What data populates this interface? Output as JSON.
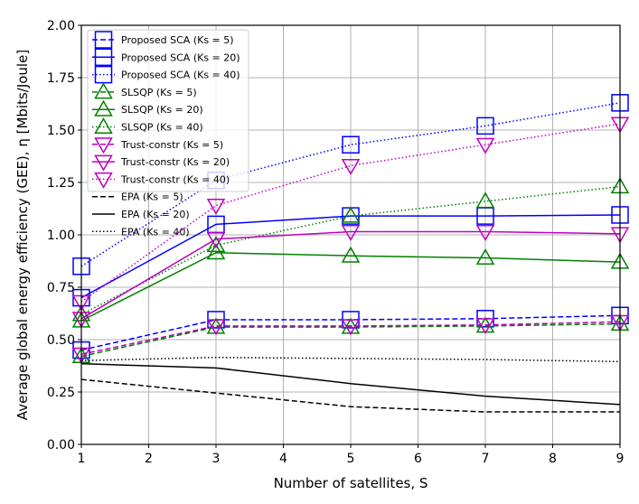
{
  "chart_data": {
    "type": "line",
    "title": "",
    "xlabel": "Number of satellites, S",
    "ylabel": "Average global energy efficiency (GEE), η [Mbits/Joule]",
    "xlim": [
      1,
      9
    ],
    "ylim": [
      0,
      2
    ],
    "xticks": [
      "1",
      "2",
      "3",
      "4",
      "5",
      "6",
      "7",
      "8",
      "9"
    ],
    "yticks": [
      "0.00",
      "0.25",
      "0.50",
      "0.75",
      "1.00",
      "1.25",
      "1.50",
      "1.75",
      "2.00"
    ],
    "grid": true,
    "legend_position": "top-left",
    "x": [
      1,
      3,
      5,
      7,
      9
    ],
    "series": [
      {
        "name": "Proposed SCA (Ks = 5)",
        "color": "#0000ff",
        "dash": "dashed",
        "marker": "square",
        "values": [
          0.45,
          0.595,
          0.595,
          0.6,
          0.615
        ]
      },
      {
        "name": "Proposed SCA (Ks = 20)",
        "color": "#0000ff",
        "dash": "solid",
        "marker": "square",
        "values": [
          0.7,
          1.05,
          1.09,
          1.09,
          1.095
        ]
      },
      {
        "name": "Proposed SCA (Ks = 40)",
        "color": "#0000ff",
        "dash": "dotted",
        "marker": "square",
        "values": [
          0.85,
          1.26,
          1.43,
          1.52,
          1.63
        ]
      },
      {
        "name": "SLSQP (Ks = 5)",
        "color": "#008000",
        "dash": "dashed",
        "marker": "triangle-up",
        "values": [
          0.42,
          0.56,
          0.56,
          0.565,
          0.575
        ]
      },
      {
        "name": "SLSQP (Ks = 20)",
        "color": "#008000",
        "dash": "solid",
        "marker": "triangle-up",
        "values": [
          0.59,
          0.915,
          0.9,
          0.89,
          0.87
        ]
      },
      {
        "name": "SLSQP (Ks = 40)",
        "color": "#008000",
        "dash": "dotted",
        "marker": "triangle-up",
        "values": [
          0.62,
          0.95,
          1.09,
          1.16,
          1.23
        ]
      },
      {
        "name": "Trust-constr (Ks = 5)",
        "color": "#bf00bf",
        "dash": "dashed",
        "marker": "triangle-down",
        "values": [
          0.43,
          0.565,
          0.565,
          0.57,
          0.585
        ]
      },
      {
        "name": "Trust-constr (Ks = 20)",
        "color": "#bf00bf",
        "dash": "solid",
        "marker": "triangle-down",
        "values": [
          0.6,
          0.98,
          1.015,
          1.015,
          1.005
        ]
      },
      {
        "name": "Trust-constr (Ks = 40)",
        "color": "#bf00bf",
        "dash": "dotted",
        "marker": "triangle-down",
        "values": [
          0.68,
          1.14,
          1.33,
          1.43,
          1.53
        ]
      },
      {
        "name": "EPA (Ks = 5)",
        "color": "#000000",
        "dash": "dashed",
        "marker": "none",
        "values": [
          0.31,
          0.245,
          0.18,
          0.155,
          0.155
        ]
      },
      {
        "name": "EPA (Ks = 20)",
        "color": "#000000",
        "dash": "solid",
        "marker": "none",
        "values": [
          0.385,
          0.365,
          0.29,
          0.23,
          0.19
        ]
      },
      {
        "name": "EPA (Ks = 40)",
        "color": "#000000",
        "dash": "dotted",
        "marker": "none",
        "values": [
          0.4,
          0.415,
          0.41,
          0.405,
          0.395
        ]
      }
    ]
  }
}
